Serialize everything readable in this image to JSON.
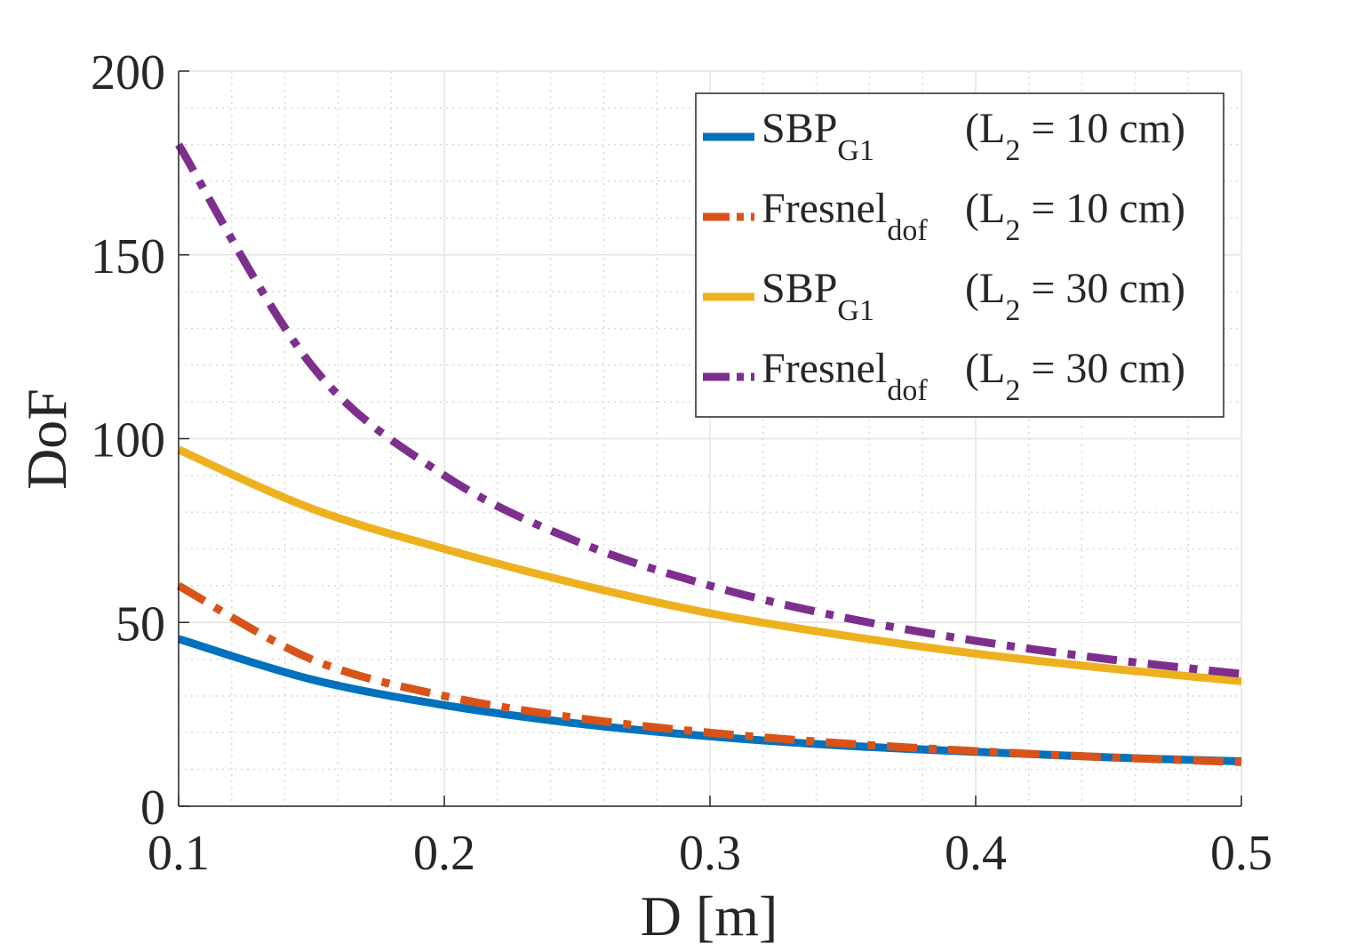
{
  "chart_data": {
    "type": "line",
    "xlabel": "D [m]",
    "ylabel": "DoF",
    "xlim": [
      0.1,
      0.5
    ],
    "ylim": [
      0,
      200
    ],
    "x_ticks": [
      "0.1",
      "0.2",
      "0.3",
      "0.4",
      "0.5"
    ],
    "y_ticks": [
      "0",
      "50",
      "100",
      "150",
      "200"
    ],
    "grid": true,
    "minor_grid": true,
    "legend_position": "top-right",
    "series": [
      {
        "name_main": "SBP",
        "name_sub": "G1",
        "name_cond_pre": "(L",
        "name_cond_sub": "2",
        "name_cond_post": " = 10 cm)",
        "color": "#0072BD",
        "style": "solid",
        "x": [
          0.1,
          0.15,
          0.2,
          0.25,
          0.3,
          0.35,
          0.4,
          0.45,
          0.5
        ],
        "y": [
          45.5,
          34.5,
          27.5,
          22.5,
          19,
          16.5,
          14.8,
          13.3,
          12.2
        ]
      },
      {
        "name_main": "Fresnel",
        "name_sub": "dof",
        "name_cond_pre": "(L",
        "name_cond_sub": "2",
        "name_cond_post": " = 10 cm)",
        "color": "#D95319",
        "style": "dashdot",
        "x": [
          0.1,
          0.15,
          0.2,
          0.25,
          0.3,
          0.35,
          0.4,
          0.45,
          0.5
        ],
        "y": [
          60,
          40,
          30,
          24,
          20,
          17.1,
          15,
          13.3,
          12
        ]
      },
      {
        "name_main": "SBP",
        "name_sub": "G1",
        "name_cond_pre": "(L",
        "name_cond_sub": "2",
        "name_cond_post": " = 30 cm)",
        "color": "#EDB120",
        "style": "solid",
        "x": [
          0.1,
          0.15,
          0.2,
          0.25,
          0.3,
          0.35,
          0.4,
          0.45,
          0.5
        ],
        "y": [
          97,
          81,
          70,
          60.5,
          52.5,
          46.5,
          41.5,
          37.5,
          34
        ]
      },
      {
        "name_main": "Fresnel",
        "name_sub": "dof",
        "name_cond_pre": "(L",
        "name_cond_sub": "2",
        "name_cond_post": " = 30 cm)",
        "color": "#7E2F8E",
        "style": "dashdot",
        "x": [
          0.1,
          0.15,
          0.2,
          0.25,
          0.3,
          0.35,
          0.4,
          0.45,
          0.5
        ],
        "y": [
          180,
          120,
          90,
          72,
          60,
          51.4,
          45,
          40,
          36
        ]
      }
    ]
  }
}
